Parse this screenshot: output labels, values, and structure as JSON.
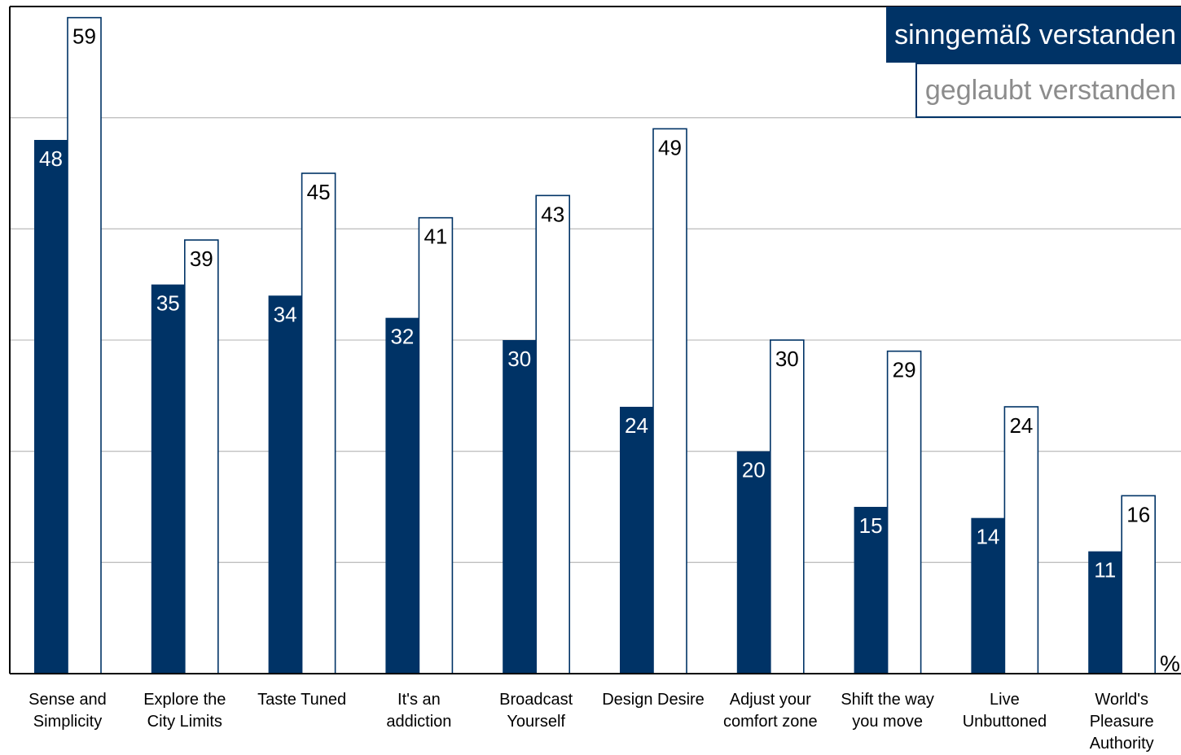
{
  "chart_data": {
    "type": "bar",
    "categories": [
      [
        "Sense and",
        "Simplicity"
      ],
      [
        "Explore the",
        "City Limits"
      ],
      [
        "Taste Tuned"
      ],
      [
        "It's an",
        "addiction"
      ],
      [
        "Broadcast",
        "Yourself"
      ],
      [
        "Design Desire"
      ],
      [
        "Adjust your",
        "comfort zone"
      ],
      [
        "Shift the way",
        "you move"
      ],
      [
        "Live",
        "Unbuttoned"
      ],
      [
        "World's",
        "Pleasure",
        "Authority"
      ]
    ],
    "series": [
      {
        "name": "sinngemäß verstanden",
        "values": [
          48,
          35,
          34,
          32,
          30,
          24,
          20,
          15,
          14,
          11
        ],
        "color": "#003366"
      },
      {
        "name": "geglaubt verstanden",
        "values": [
          59,
          39,
          45,
          41,
          43,
          49,
          30,
          29,
          24,
          16
        ],
        "color": "#ffffff"
      }
    ],
    "ylim": [
      0,
      60
    ],
    "grid": true,
    "legend": "top-right",
    "unit_label": "%",
    "colors": {
      "dark": "#003366",
      "outline": "#003366",
      "grid": "#c0c0c0",
      "legend_light_text": "#8c8c8c"
    }
  }
}
